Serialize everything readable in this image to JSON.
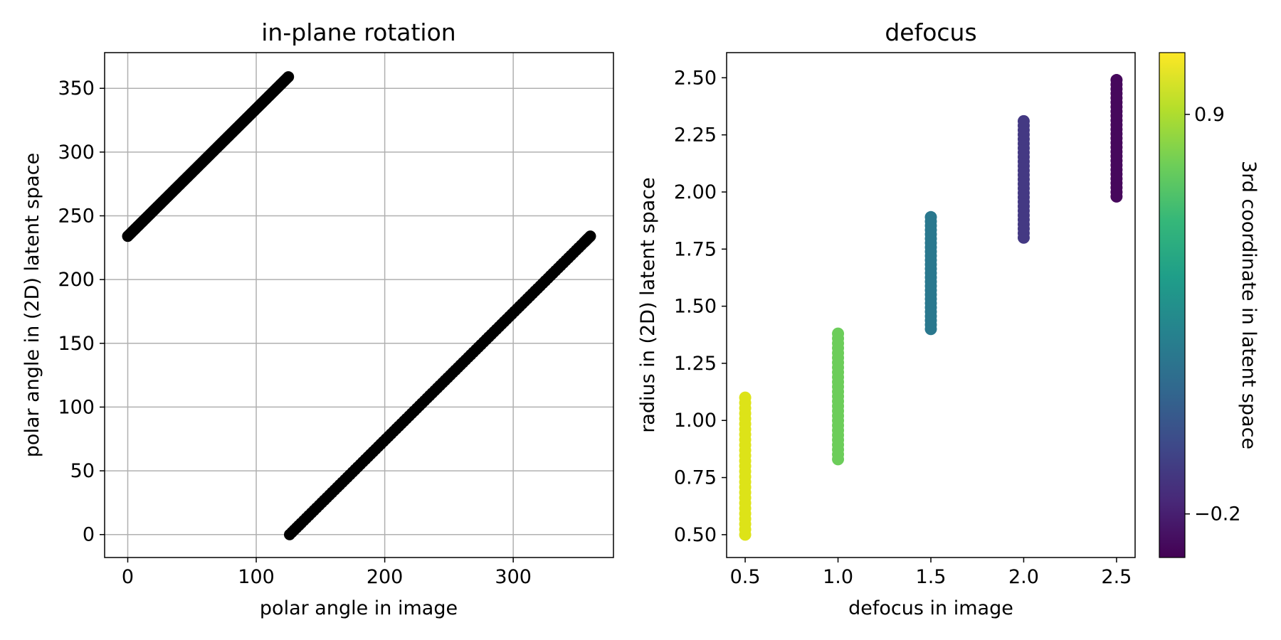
{
  "chart_data": [
    {
      "type": "scatter",
      "title": "in-plane rotation",
      "xlabel": "polar angle in image",
      "ylabel": "polar angle in (2D) latent space",
      "xlim": [
        -18,
        378
      ],
      "ylim": [
        -18,
        378
      ],
      "xticks": [
        0,
        100,
        200,
        300
      ],
      "yticks": [
        0,
        50,
        100,
        150,
        200,
        250,
        300,
        350
      ],
      "xtick_labels": [
        "0",
        "100",
        "200",
        "300"
      ],
      "ytick_labels": [
        "0",
        "50",
        "100",
        "150",
        "200",
        "250",
        "300",
        "350"
      ],
      "grid": true,
      "marker_color": "#000000",
      "series": [
        {
          "points": [
            [
              0,
              234
            ],
            [
              5,
              239
            ],
            [
              10,
              244
            ],
            [
              15,
              249
            ],
            [
              20,
              254
            ],
            [
              25,
              259
            ],
            [
              30,
              264
            ],
            [
              35,
              269
            ],
            [
              40,
              274
            ],
            [
              45,
              279
            ],
            [
              50,
              284
            ],
            [
              55,
              289
            ],
            [
              60,
              294
            ],
            [
              65,
              299
            ],
            [
              70,
              304
            ],
            [
              75,
              309
            ],
            [
              80,
              314
            ],
            [
              85,
              319
            ],
            [
              90,
              324
            ],
            [
              95,
              329
            ],
            [
              100,
              334
            ],
            [
              105,
              339
            ],
            [
              110,
              344
            ],
            [
              115,
              349
            ],
            [
              120,
              354
            ],
            [
              125,
              359
            ]
          ]
        },
        {
          "points": [
            [
              126,
              0
            ],
            [
              135,
              9
            ],
            [
              145,
              19
            ],
            [
              155,
              29
            ],
            [
              165,
              39
            ],
            [
              175,
              49
            ],
            [
              185,
              59
            ],
            [
              195,
              69
            ],
            [
              205,
              79
            ],
            [
              215,
              89
            ],
            [
              225,
              99
            ],
            [
              235,
              109
            ],
            [
              245,
              119
            ],
            [
              255,
              129
            ],
            [
              265,
              139
            ],
            [
              275,
              149
            ],
            [
              285,
              159
            ],
            [
              295,
              169
            ],
            [
              305,
              179
            ],
            [
              315,
              189
            ],
            [
              325,
              199
            ],
            [
              335,
              209
            ],
            [
              345,
              219
            ],
            [
              355,
              229
            ],
            [
              360,
              234
            ]
          ]
        }
      ]
    },
    {
      "type": "scatter",
      "title": "defocus",
      "xlabel": "defocus in image",
      "ylabel": "radius in (2D) latent space",
      "xlim": [
        0.4,
        2.6
      ],
      "ylim": [
        0.4,
        2.61
      ],
      "xticks": [
        0.5,
        1.0,
        1.5,
        2.0,
        2.5
      ],
      "yticks": [
        0.5,
        0.75,
        1.0,
        1.25,
        1.5,
        1.75,
        2.0,
        2.25,
        2.5
      ],
      "xtick_labels": [
        "0.5",
        "1.0",
        "1.5",
        "2.0",
        "2.5"
      ],
      "ytick_labels": [
        "0.50",
        "0.75",
        "1.00",
        "1.25",
        "1.50",
        "1.75",
        "2.00",
        "2.25",
        "2.50"
      ],
      "grid": false,
      "groups": [
        {
          "x": 0.5,
          "y_range": [
            0.5,
            1.1
          ],
          "color_value": 1.0,
          "color": "#dde318"
        },
        {
          "x": 1.0,
          "y_range": [
            0.83,
            1.38
          ],
          "color_value": 0.65,
          "color": "#6ccd5a"
        },
        {
          "x": 1.5,
          "y_range": [
            1.4,
            1.89
          ],
          "color_value": 0.3,
          "color": "#2a788e"
        },
        {
          "x": 2.0,
          "y_range": [
            1.8,
            2.31
          ],
          "color_value": -0.1,
          "color": "#443983"
        },
        {
          "x": 2.5,
          "y_range": [
            1.98,
            2.49
          ],
          "color_value": -0.25,
          "color": "#46085c"
        }
      ],
      "colorbar": {
        "label": "3rd coordinate in latent space",
        "vmin": -0.32,
        "vmax": 1.07,
        "ticks": [
          0.9,
          -0.2
        ],
        "tick_labels": [
          "0.9",
          "−0.2"
        ],
        "colormap": [
          "#440154",
          "#482878",
          "#3e4989",
          "#31688e",
          "#26828e",
          "#1f9e89",
          "#35b779",
          "#6ece58",
          "#b5de2b",
          "#fde725"
        ]
      }
    }
  ]
}
